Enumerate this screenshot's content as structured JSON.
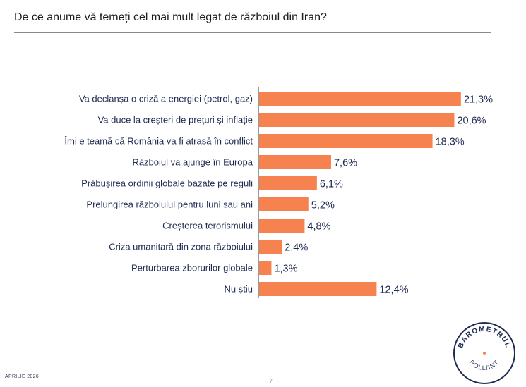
{
  "title": "De ce anume vă temeți cel mai mult legat de războiul din Iran?",
  "chart_data": {
    "type": "bar",
    "orientation": "horizontal",
    "title": "De ce anume vă temeți cel mai mult legat de războiul din Iran?",
    "xlabel": "",
    "ylabel": "",
    "xlim": [
      0,
      25
    ],
    "bar_color": "#f6834f",
    "categories": [
      "Va declanșa o criză a energiei (petrol, gaz)",
      "Va duce la creșteri de prețuri și inflație",
      "Îmi e teamă că România va fi atrasă în conflict",
      "Războiul va ajunge în Europa",
      "Prăbușirea ordinii globale bazate pe reguli",
      "Prelungirea războiului pentru luni sau ani",
      "Creșterea terorismului",
      "Criza umanitară din zona războiului",
      "Perturbarea zborurilor globale",
      "Nu știu"
    ],
    "values": [
      21.3,
      20.6,
      18.3,
      7.6,
      6.1,
      5.2,
      4.8,
      2.4,
      1.3,
      12.4
    ],
    "value_labels": [
      "21,3%",
      "20,6%",
      "18,3%",
      "7,6%",
      "6,1%",
      "5,2%",
      "4,8%",
      "2,4%",
      "1,3%",
      "12,4%"
    ]
  },
  "footer": {
    "date": "APRILIE 2026",
    "page_number": "7"
  },
  "logo": {
    "top_text": "BAROMETRUL",
    "bottom_text": "POLL/INT",
    "dot_color": "#f6834f"
  }
}
